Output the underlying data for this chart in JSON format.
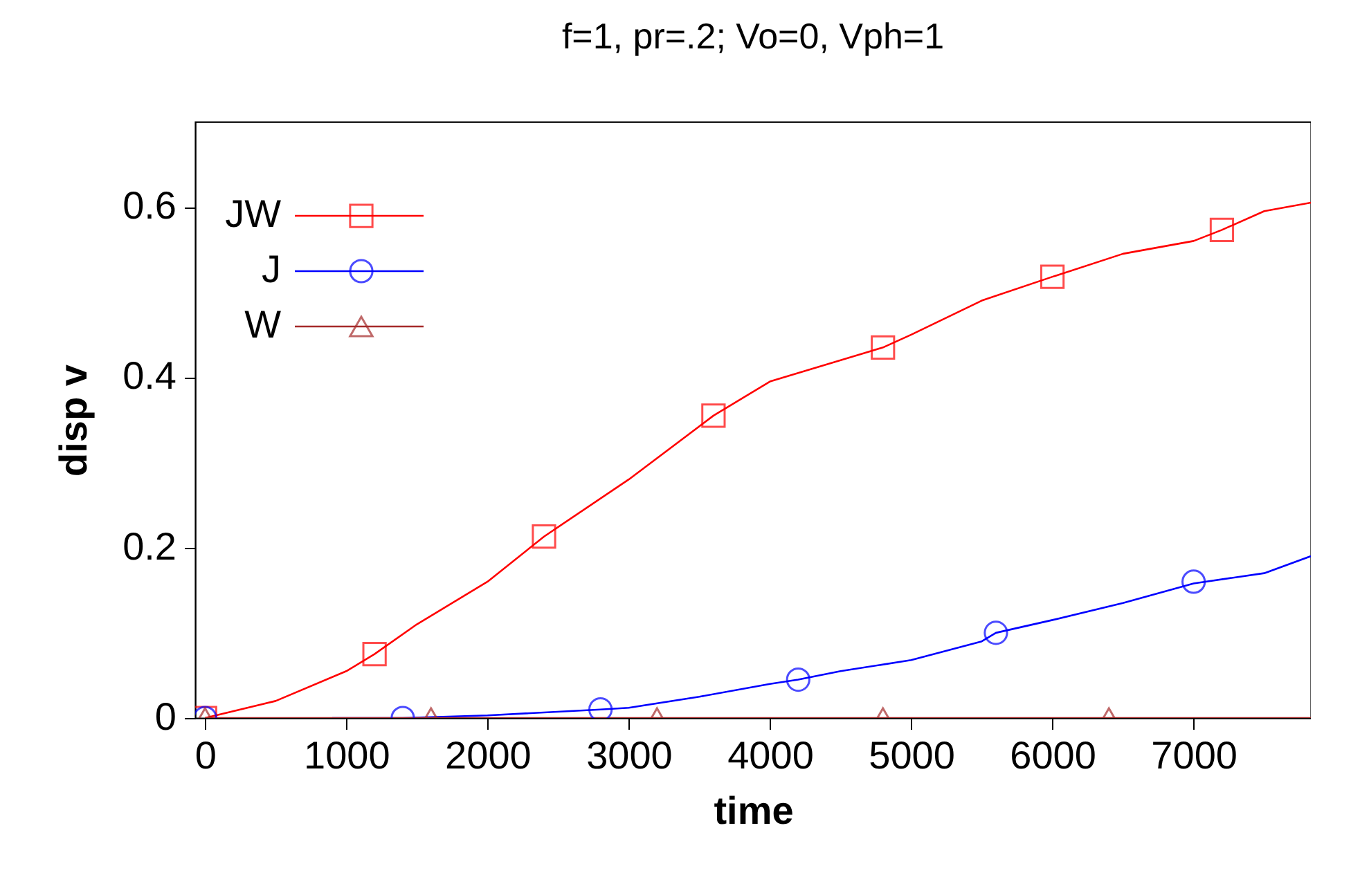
{
  "chart_data": {
    "type": "line",
    "title": "f=1, pr=.2;  Vo=0, Vph=1",
    "xlabel": "time",
    "ylabel": "disp  v",
    "xlim": [
      -70,
      7830
    ],
    "xticks": [
      0,
      1000,
      2000,
      3000,
      4000,
      5000,
      6000,
      7000
    ],
    "ylim": [
      0,
      0.7
    ],
    "yticks": [
      {
        "value": 0,
        "label": "0"
      },
      {
        "value": 0.2,
        "label": "0.2"
      },
      {
        "value": 0.4,
        "label": "0.4"
      },
      {
        "value": 0.6,
        "label": "0.6"
      }
    ],
    "grid": false,
    "legend": "top left",
    "line_style": "solid",
    "series": [
      {
        "color": "#ff0000",
        "x": [
          0,
          500,
          1000,
          1200,
          1500,
          2000,
          2400,
          3000,
          3600,
          4000,
          4800,
          5000,
          5500,
          6000,
          6500,
          7000,
          7200,
          7500,
          7830
        ],
        "values": [
          0,
          0.02,
          0.055,
          0.075,
          0.11,
          0.16,
          0.213,
          0.28,
          0.355,
          0.395,
          0.435,
          0.45,
          0.49,
          0.518,
          0.545,
          0.56,
          0.573,
          0.595,
          0.605
        ]
      },
      {
        "color": "#0000ff",
        "x": [
          900,
          1400,
          2000,
          2800,
          3000,
          3500,
          4000,
          4200,
          4500,
          5000,
          5500,
          5600,
          6000,
          6500,
          7000,
          7500,
          7830
        ],
        "values": [
          0,
          0,
          0.003,
          0.01,
          0.012,
          0.025,
          0.04,
          0.045,
          0.055,
          0.068,
          0.09,
          0.1,
          0.115,
          0.135,
          0.158,
          0.17,
          0.19
        ]
      },
      {
        "color": "#a52a2a",
        "x": [
          0,
          7830
        ],
        "values": [
          0,
          0
        ]
      },
      {
        "type": "scatter",
        "name": "JW",
        "marker": "square",
        "color": "#ff0000",
        "x": [
          0,
          1200,
          2400,
          3600,
          4800,
          6000,
          7200
        ],
        "values": [
          0,
          0.075,
          0.213,
          0.355,
          0.435,
          0.518,
          0.573
        ]
      },
      {
        "type": "scatter",
        "name": "J",
        "marker": "circle",
        "color": "#0000ff",
        "x": [
          0,
          1400,
          2800,
          4200,
          5600,
          7000
        ],
        "values": [
          0,
          0,
          0.01,
          0.045,
          0.1,
          0.16
        ]
      },
      {
        "type": "scatter",
        "name": "W",
        "marker": "triangle",
        "color": "#a52a2a",
        "x": [
          0,
          1600,
          3200,
          4800,
          6400
        ],
        "values": [
          0,
          0,
          0,
          0,
          0
        ]
      }
    ]
  }
}
